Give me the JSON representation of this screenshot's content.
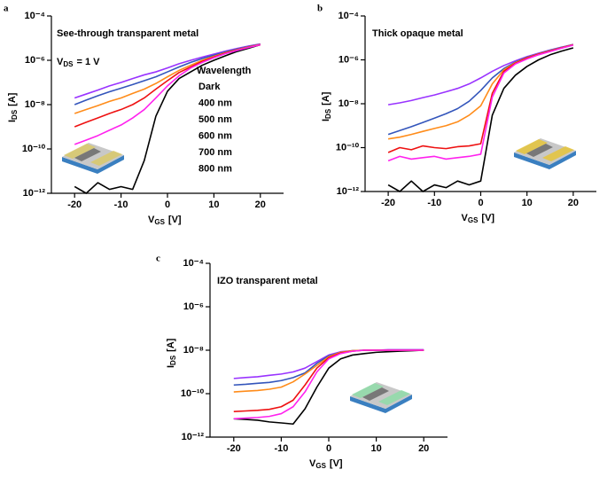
{
  "chart_data": [
    {
      "type": "line",
      "panel_label": "a",
      "title": "See-through transparent metal",
      "annotation": {
        "main": "V",
        "sub": "DS",
        "text": "= 1 V"
      },
      "xlabel": {
        "main": "V",
        "sub": "GS",
        "unit": "[V]"
      },
      "ylabel": {
        "main": "I",
        "sub": "DS",
        "unit": "[A]"
      },
      "log_y": true,
      "legend": true,
      "legend_title": "Wavelength",
      "xlim": [
        -25,
        25
      ],
      "xticks": [
        -20,
        -10,
        0,
        10,
        20
      ],
      "ylim": [
        1e-12,
        0.0001
      ],
      "yticks": [
        {
          "value": 1e-12,
          "label": "10⁻¹²"
        },
        {
          "value": 1e-10,
          "label": "10⁻¹⁰"
        },
        {
          "value": 1e-08,
          "label": "10⁻⁸"
        },
        {
          "value": 1e-06,
          "label": "10⁻⁶"
        },
        {
          "value": 0.0001,
          "label": "10⁻⁴"
        }
      ],
      "x": [
        -20,
        -17.5,
        -15,
        -12.5,
        -10,
        -7.5,
        -5,
        -2.5,
        0,
        2.5,
        5,
        7.5,
        10,
        12.5,
        15,
        17.5,
        20
      ],
      "series": [
        {
          "name": "Dark",
          "color": "#000000",
          "values": [
            2e-12,
            1e-12,
            3e-12,
            1.5e-12,
            2e-12,
            1.5e-12,
            3e-11,
            3e-09,
            4e-08,
            1.5e-07,
            3e-07,
            6e-07,
            1e-06,
            1.6e-06,
            2.5e-06,
            3.5e-06,
            5e-06
          ]
        },
        {
          "name": "400 nm",
          "color": "#9933ff",
          "values": [
            2e-08,
            3e-08,
            4.5e-08,
            7e-08,
            1e-07,
            1.5e-07,
            2.2e-07,
            3e-07,
            4.5e-07,
            7e-07,
            1e-06,
            1.4e-06,
            1.9e-06,
            2.6e-06,
            3.4e-06,
            4.4e-06,
            5.5e-06
          ]
        },
        {
          "name": "500 nm",
          "color": "#3355bb",
          "values": [
            1e-08,
            1.6e-08,
            2.5e-08,
            3.8e-08,
            5.5e-08,
            8e-08,
            1.2e-07,
            1.8e-07,
            3e-07,
            5e-07,
            8e-07,
            1.2e-06,
            1.7e-06,
            2.4e-06,
            3.2e-06,
            4.2e-06,
            5.3e-06
          ]
        },
        {
          "name": "600 nm",
          "color": "#ff8c1a",
          "values": [
            4e-09,
            6e-09,
            9e-09,
            1.4e-08,
            2e-08,
            3.2e-08,
            5e-08,
            9e-08,
            1.8e-07,
            3.5e-07,
            6e-07,
            1e-06,
            1.5e-06,
            2.2e-06,
            3e-06,
            4e-06,
            5.2e-06
          ]
        },
        {
          "name": "700 nm",
          "color": "#ee1111",
          "values": [
            1e-09,
            1.6e-09,
            2.5e-09,
            4e-09,
            6e-09,
            1e-08,
            2e-08,
            5e-08,
            1.2e-07,
            2.8e-07,
            5e-07,
            9e-07,
            1.4e-06,
            2.1e-06,
            2.9e-06,
            3.9e-06,
            5e-06
          ]
        },
        {
          "name": "800 nm",
          "color": "#ff22ee",
          "values": [
            1.6e-10,
            2.5e-10,
            4e-10,
            7e-10,
            1.2e-09,
            2.5e-09,
            6e-09,
            2e-08,
            7e-08,
            2e-07,
            4.5e-07,
            8e-07,
            1.3e-06,
            2e-06,
            2.8e-06,
            3.8e-06,
            5e-06
          ]
        }
      ]
    },
    {
      "type": "line",
      "panel_label": "b",
      "title": "Thick opaque metal",
      "xlabel": {
        "main": "V",
        "sub": "GS",
        "unit": "[V]"
      },
      "ylabel": {
        "main": "I",
        "sub": "DS",
        "unit": "[A]"
      },
      "log_y": true,
      "legend": false,
      "xlim": [
        -25,
        25
      ],
      "xticks": [
        -20,
        -10,
        0,
        10,
        20
      ],
      "ylim": [
        1e-12,
        0.0001
      ],
      "yticks": [
        {
          "value": 1e-12,
          "label": "10⁻¹²"
        },
        {
          "value": 1e-10,
          "label": "10⁻¹⁰"
        },
        {
          "value": 1e-08,
          "label": "10⁻⁸"
        },
        {
          "value": 1e-06,
          "label": "10⁻⁶"
        },
        {
          "value": 0.0001,
          "label": "10⁻⁴"
        }
      ],
      "x": [
        -20,
        -17.5,
        -15,
        -12.5,
        -10,
        -7.5,
        -5,
        -2.5,
        0,
        2.5,
        5,
        7.5,
        10,
        12.5,
        15,
        17.5,
        20
      ],
      "series": [
        {
          "color": "#000000",
          "values": [
            2e-12,
            1e-12,
            3e-12,
            1e-12,
            2e-12,
            1.5e-12,
            3e-12,
            2e-12,
            3e-12,
            3e-09,
            5e-08,
            2e-07,
            5e-07,
            1e-06,
            1.7e-06,
            2.5e-06,
            3.5e-06
          ]
        },
        {
          "color": "#9933ff",
          "values": [
            9e-09,
            1.1e-08,
            1.4e-08,
            1.9e-08,
            2.5e-08,
            3.5e-08,
            5e-08,
            8e-08,
            1.5e-07,
            3e-07,
            5.5e-07,
            9e-07,
            1.4e-06,
            2e-06,
            2.8e-06,
            3.8e-06,
            5e-06
          ]
        },
        {
          "color": "#3355bb",
          "values": [
            4e-10,
            6e-10,
            9e-10,
            1.4e-09,
            2.2e-09,
            3.5e-09,
            6e-09,
            1.3e-08,
            4e-08,
            1.5e-07,
            4e-07,
            8e-07,
            1.3e-06,
            1.9e-06,
            2.7e-06,
            3.7e-06,
            5e-06
          ]
        },
        {
          "color": "#ff8c1a",
          "values": [
            2.5e-10,
            3e-10,
            4e-10,
            5.5e-10,
            7.5e-10,
            1e-09,
            1.5e-09,
            3e-09,
            8e-09,
            8e-08,
            3.5e-07,
            7.5e-07,
            1.25e-06,
            1.85e-06,
            2.6e-06,
            3.6e-06,
            4.9e-06
          ]
        },
        {
          "color": "#ee1111",
          "values": [
            6e-11,
            1e-10,
            8e-11,
            1.2e-10,
            1e-10,
            9e-11,
            1.1e-10,
            1.2e-10,
            1.5e-10,
            3e-08,
            3e-07,
            7e-07,
            1.2e-06,
            1.8e-06,
            2.5e-06,
            3.5e-06,
            4.8e-06
          ]
        },
        {
          "color": "#ff22ee",
          "values": [
            2.5e-11,
            4e-11,
            3e-11,
            3.5e-11,
            4e-11,
            3e-11,
            3.5e-11,
            4e-11,
            5e-11,
            2e-08,
            2.5e-07,
            6.5e-07,
            1.1e-06,
            1.7e-06,
            2.4e-06,
            3.4e-06,
            4.7e-06
          ]
        }
      ]
    },
    {
      "type": "line",
      "panel_label": "c",
      "title": "IZO transparent metal",
      "xlabel": {
        "main": "V",
        "sub": "GS",
        "unit": "[V]"
      },
      "ylabel": {
        "main": "I",
        "sub": "DS",
        "unit": "[A]"
      },
      "log_y": true,
      "legend": false,
      "xlim": [
        -25,
        25
      ],
      "xticks": [
        -20,
        -10,
        0,
        10,
        20
      ],
      "ylim": [
        1e-12,
        0.0001
      ],
      "yticks": [
        {
          "value": 1e-12,
          "label": "10⁻¹²"
        },
        {
          "value": 1e-10,
          "label": "10⁻¹⁰"
        },
        {
          "value": 1e-08,
          "label": "10⁻⁸"
        },
        {
          "value": 1e-06,
          "label": "10⁻⁶"
        },
        {
          "value": 0.0001,
          "label": "10⁻⁴"
        }
      ],
      "x": [
        -20,
        -17.5,
        -15,
        -12.5,
        -10,
        -7.5,
        -5,
        -2.5,
        0,
        2.5,
        5,
        7.5,
        10,
        12.5,
        15,
        17.5,
        20
      ],
      "series": [
        {
          "color": "#000000",
          "values": [
            7e-12,
            6.5e-12,
            6e-12,
            5e-12,
            4.5e-12,
            4e-12,
            2e-11,
            2e-10,
            1.5e-09,
            4e-09,
            6e-09,
            7e-09,
            8e-09,
            8.5e-09,
            9e-09,
            9.5e-09,
            1e-08
          ]
        },
        {
          "color": "#9933ff",
          "values": [
            5e-10,
            5.5e-10,
            6e-10,
            7e-10,
            8e-10,
            1e-09,
            1.5e-09,
            3e-09,
            6e-09,
            8.5e-09,
            9.5e-09,
            1e-08,
            1e-08,
            1.05e-08,
            1.05e-08,
            1.05e-08,
            1.05e-08
          ]
        },
        {
          "color": "#3355bb",
          "values": [
            2.5e-10,
            2.7e-10,
            3e-10,
            3.3e-10,
            4e-10,
            5.5e-10,
            9e-10,
            2.5e-09,
            5.5e-09,
            8e-09,
            9.5e-09,
            1e-08,
            1e-08,
            1e-08,
            1e-08,
            1e-08,
            1e-08
          ]
        },
        {
          "color": "#ff8c1a",
          "values": [
            1.2e-10,
            1.3e-10,
            1.4e-10,
            1.6e-10,
            2e-10,
            3.5e-10,
            8e-10,
            2e-09,
            5e-09,
            8e-09,
            9.5e-09,
            1e-08,
            1e-08,
            1e-08,
            1e-08,
            1e-08,
            1e-08
          ]
        },
        {
          "color": "#ee1111",
          "values": [
            1.5e-11,
            1.6e-11,
            1.7e-11,
            1.9e-11,
            2.5e-11,
            5e-11,
            2.5e-10,
            1.5e-09,
            4.5e-09,
            7.5e-09,
            9e-09,
            1e-08,
            1e-08,
            1e-08,
            1e-08,
            1e-08,
            1e-08
          ]
        },
        {
          "color": "#ff22ee",
          "values": [
            7e-12,
            7.5e-12,
            8e-12,
            9e-12,
            1.2e-11,
            2.5e-11,
            1.2e-10,
            1e-09,
            4e-09,
            7e-09,
            9e-09,
            1e-08,
            1e-08,
            1e-08,
            1e-08,
            1e-08,
            1e-08
          ]
        }
      ]
    }
  ]
}
